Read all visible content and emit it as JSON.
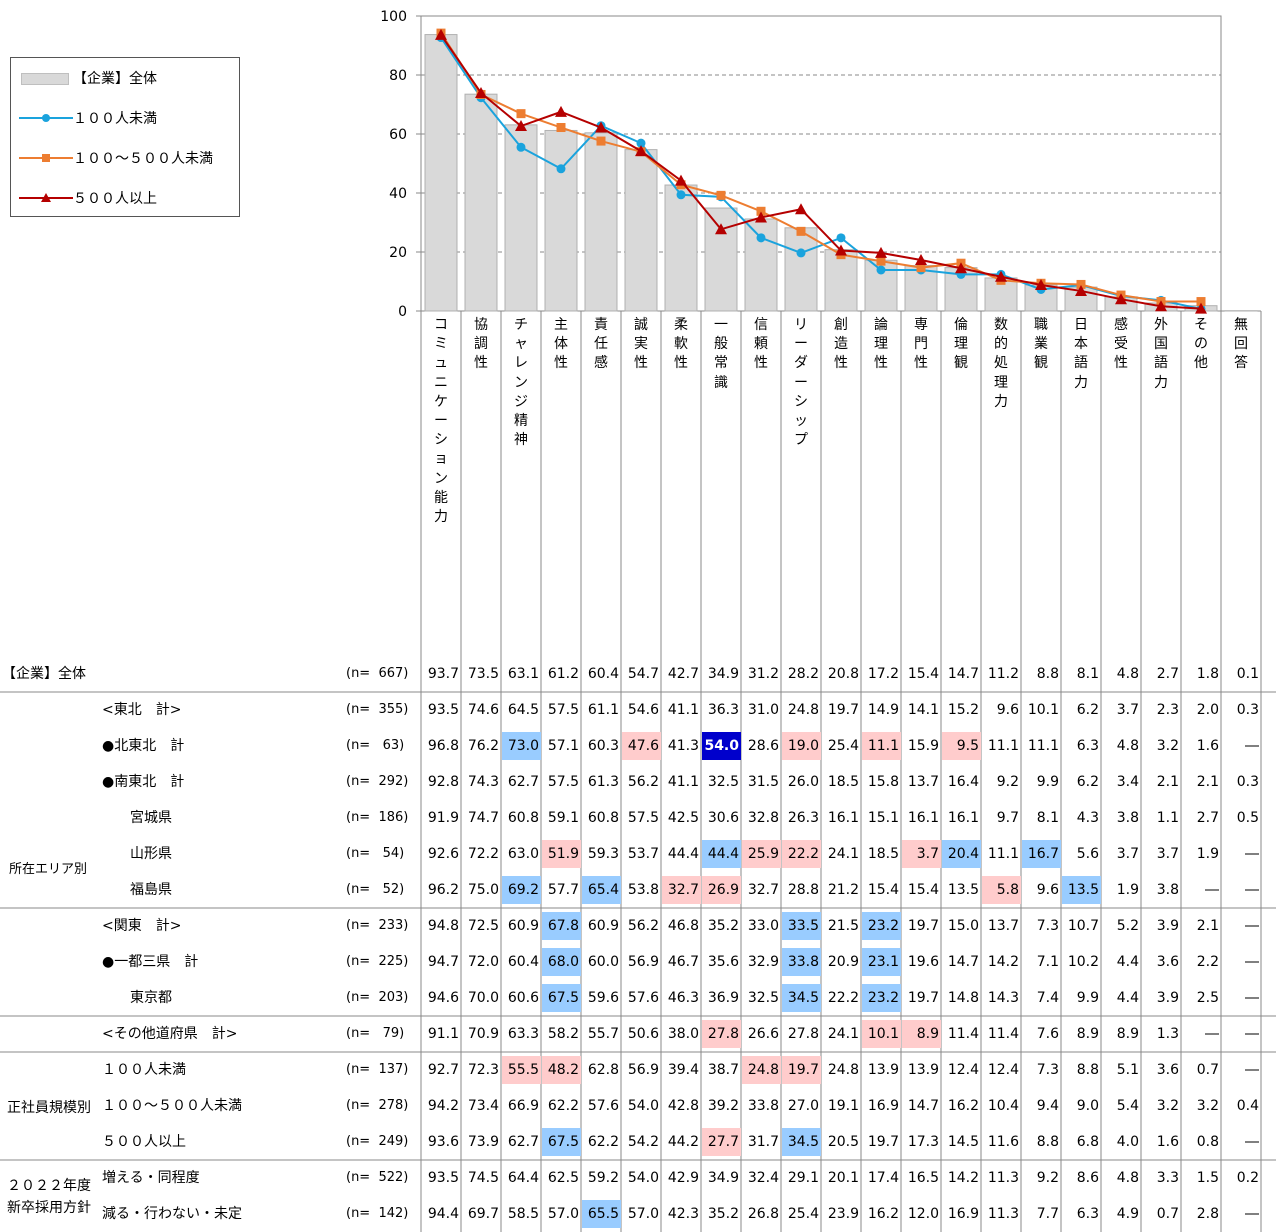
{
  "chart_data": {
    "type": "bar",
    "ylim": [
      0,
      100
    ],
    "yticks": [
      0,
      20,
      40,
      60,
      80,
      100
    ],
    "categories": [
      "コミュニケーション能力",
      "協調性",
      "チャレンジ精神",
      "主体性",
      "責任感",
      "誠実性",
      "柔軟性",
      "一般常識",
      "信頼性",
      "リーダーシップ",
      "創造性",
      "論理性",
      "専門性",
      "倫理観",
      "数的処理力",
      "職業観",
      "日本語力",
      "感受性",
      "外国語力",
      "その他",
      "無回答"
    ],
    "series": [
      {
        "name": "【企業】全体",
        "kind": "bar",
        "color": "#d9d9d9",
        "values": [
          93.7,
          73.5,
          63.1,
          61.2,
          60.4,
          54.7,
          42.7,
          34.9,
          31.2,
          28.2,
          20.8,
          17.2,
          15.4,
          14.7,
          11.2,
          8.8,
          8.1,
          4.8,
          2.7,
          1.8,
          0.1
        ]
      },
      {
        "name": "１００人未満",
        "kind": "line",
        "color": "#1aa3dd",
        "marker": "circle",
        "values": [
          92.7,
          72.3,
          55.5,
          48.2,
          62.8,
          56.9,
          39.4,
          38.7,
          24.8,
          19.7,
          24.8,
          13.9,
          13.9,
          12.4,
          12.4,
          7.3,
          8.8,
          5.1,
          3.6,
          0.7,
          null
        ]
      },
      {
        "name": "１００～５００人未満",
        "kind": "line",
        "color": "#ed7d31",
        "marker": "square",
        "values": [
          94.2,
          73.4,
          66.9,
          62.2,
          57.6,
          54.0,
          42.8,
          39.2,
          33.8,
          27.0,
          19.1,
          16.9,
          14.7,
          16.2,
          10.4,
          9.4,
          9.0,
          5.4,
          3.2,
          3.2,
          0.4
        ]
      },
      {
        "name": "５００人以上",
        "kind": "line",
        "color": "#b50000",
        "marker": "triangle",
        "values": [
          93.6,
          73.9,
          62.7,
          67.5,
          62.2,
          54.2,
          44.2,
          27.7,
          31.7,
          34.5,
          20.5,
          19.7,
          17.3,
          14.5,
          11.6,
          8.8,
          6.8,
          4.0,
          1.6,
          0.8,
          null
        ]
      }
    ]
  },
  "legend": {
    "items": [
      "【企業】全体",
      "１００人未満",
      "１００～５００人未満",
      "５００人以上"
    ]
  },
  "groups": {
    "area": "所在エリア別",
    "size": "正社員規模別",
    "plan_line1": "２０２２年度",
    "plan_line2": "新卒採用方針"
  },
  "table": {
    "rows": [
      {
        "label": "【企業】全体",
        "n": "(n=  667)",
        "indent": 0,
        "values": [
          "93.7",
          "73.5",
          "63.1",
          "61.2",
          "60.4",
          "54.7",
          "42.7",
          "34.9",
          "31.2",
          "28.2",
          "20.8",
          "17.2",
          "15.4",
          "14.7",
          "11.2",
          "8.8",
          "8.1",
          "4.8",
          "2.7",
          "1.8",
          "0.1"
        ]
      },
      {
        "label": "<東北　計>",
        "n": "(n=  355)",
        "indent": 1,
        "values": [
          "93.5",
          "74.6",
          "64.5",
          "57.5",
          "61.1",
          "54.6",
          "41.1",
          "36.3",
          "31.0",
          "24.8",
          "19.7",
          "14.9",
          "14.1",
          "15.2",
          "9.6",
          "10.1",
          "6.2",
          "3.7",
          "2.3",
          "2.0",
          "0.3"
        ]
      },
      {
        "label": "●北東北　計",
        "n": "(n=   63)",
        "indent": 1,
        "values": [
          "96.8",
          "76.2",
          "73.0",
          "57.1",
          "60.3",
          "47.6",
          "41.3",
          "54.0",
          "28.6",
          "19.0",
          "25.4",
          "11.1",
          "15.9",
          "9.5",
          "11.1",
          "11.1",
          "6.3",
          "4.8",
          "3.2",
          "1.6",
          "―"
        ],
        "hl": {
          "2": "blue",
          "5": "pink",
          "7": "dark",
          "9": "pink",
          "11": "pink",
          "13": "pink"
        }
      },
      {
        "label": "●南東北　計",
        "n": "(n=  292)",
        "indent": 1,
        "values": [
          "92.8",
          "74.3",
          "62.7",
          "57.5",
          "61.3",
          "56.2",
          "41.1",
          "32.5",
          "31.5",
          "26.0",
          "18.5",
          "15.8",
          "13.7",
          "16.4",
          "9.2",
          "9.9",
          "6.2",
          "3.4",
          "2.1",
          "2.1",
          "0.3"
        ]
      },
      {
        "label": "宮城県",
        "n": "(n=  186)",
        "indent": 2,
        "values": [
          "91.9",
          "74.7",
          "60.8",
          "59.1",
          "60.8",
          "57.5",
          "42.5",
          "30.6",
          "32.8",
          "26.3",
          "16.1",
          "15.1",
          "16.1",
          "16.1",
          "9.7",
          "8.1",
          "4.3",
          "3.8",
          "1.1",
          "2.7",
          "0.5"
        ]
      },
      {
        "label": "山形県",
        "n": "(n=   54)",
        "indent": 2,
        "values": [
          "92.6",
          "72.2",
          "63.0",
          "51.9",
          "59.3",
          "53.7",
          "44.4",
          "44.4",
          "25.9",
          "22.2",
          "24.1",
          "18.5",
          "3.7",
          "20.4",
          "11.1",
          "16.7",
          "5.6",
          "3.7",
          "3.7",
          "1.9",
          "―"
        ],
        "hl": {
          "3": "pink",
          "7": "blue",
          "8": "pink",
          "9": "pink",
          "12": "pink",
          "13": "blue",
          "15": "blue"
        }
      },
      {
        "label": "福島県",
        "n": "(n=   52)",
        "indent": 2,
        "values": [
          "96.2",
          "75.0",
          "69.2",
          "57.7",
          "65.4",
          "53.8",
          "32.7",
          "26.9",
          "32.7",
          "28.8",
          "21.2",
          "15.4",
          "15.4",
          "13.5",
          "5.8",
          "9.6",
          "13.5",
          "1.9",
          "3.8",
          "―",
          "―"
        ],
        "hl": {
          "2": "blue",
          "4": "blue",
          "6": "pink",
          "7": "pink",
          "14": "pink",
          "16": "blue"
        }
      },
      {
        "label": "<関東　計>",
        "n": "(n=  233)",
        "indent": 1,
        "values": [
          "94.8",
          "72.5",
          "60.9",
          "67.8",
          "60.9",
          "56.2",
          "46.8",
          "35.2",
          "33.0",
          "33.5",
          "21.5",
          "23.2",
          "19.7",
          "15.0",
          "13.7",
          "7.3",
          "10.7",
          "5.2",
          "3.9",
          "2.1",
          "―"
        ],
        "hl": {
          "3": "blue",
          "9": "blue",
          "11": "blue"
        }
      },
      {
        "label": "●一都三県　計",
        "n": "(n=  225)",
        "indent": 1,
        "values": [
          "94.7",
          "72.0",
          "60.4",
          "68.0",
          "60.0",
          "56.9",
          "46.7",
          "35.6",
          "32.9",
          "33.8",
          "20.9",
          "23.1",
          "19.6",
          "14.7",
          "14.2",
          "7.1",
          "10.2",
          "4.4",
          "3.6",
          "2.2",
          "―"
        ],
        "hl": {
          "3": "blue",
          "9": "blue",
          "11": "blue"
        }
      },
      {
        "label": "東京都",
        "n": "(n=  203)",
        "indent": 2,
        "values": [
          "94.6",
          "70.0",
          "60.6",
          "67.5",
          "59.6",
          "57.6",
          "46.3",
          "36.9",
          "32.5",
          "34.5",
          "22.2",
          "23.2",
          "19.7",
          "14.8",
          "14.3",
          "7.4",
          "9.9",
          "4.4",
          "3.9",
          "2.5",
          "―"
        ],
        "hl": {
          "3": "blue",
          "9": "blue",
          "11": "blue"
        }
      },
      {
        "label": "<その他道府県　計>",
        "n": "(n=   79)",
        "indent": 1,
        "values": [
          "91.1",
          "70.9",
          "63.3",
          "58.2",
          "55.7",
          "50.6",
          "38.0",
          "27.8",
          "26.6",
          "27.8",
          "24.1",
          "10.1",
          "8.9",
          "11.4",
          "11.4",
          "7.6",
          "8.9",
          "8.9",
          "1.3",
          "―",
          "―"
        ],
        "hl": {
          "7": "pink",
          "11": "pink",
          "12": "pink"
        }
      },
      {
        "label": "１００人未満",
        "n": "(n=  137)",
        "indent": 1,
        "values": [
          "92.7",
          "72.3",
          "55.5",
          "48.2",
          "62.8",
          "56.9",
          "39.4",
          "38.7",
          "24.8",
          "19.7",
          "24.8",
          "13.9",
          "13.9",
          "12.4",
          "12.4",
          "7.3",
          "8.8",
          "5.1",
          "3.6",
          "0.7",
          "―"
        ],
        "hl": {
          "2": "pink",
          "3": "pink",
          "8": "pink",
          "9": "pink"
        }
      },
      {
        "label": "１００～５００人未満",
        "n": "(n=  278)",
        "indent": 1,
        "values": [
          "94.2",
          "73.4",
          "66.9",
          "62.2",
          "57.6",
          "54.0",
          "42.8",
          "39.2",
          "33.8",
          "27.0",
          "19.1",
          "16.9",
          "14.7",
          "16.2",
          "10.4",
          "9.4",
          "9.0",
          "5.4",
          "3.2",
          "3.2",
          "0.4"
        ]
      },
      {
        "label": "５００人以上",
        "n": "(n=  249)",
        "indent": 1,
        "values": [
          "93.6",
          "73.9",
          "62.7",
          "67.5",
          "62.2",
          "54.2",
          "44.2",
          "27.7",
          "31.7",
          "34.5",
          "20.5",
          "19.7",
          "17.3",
          "14.5",
          "11.6",
          "8.8",
          "6.8",
          "4.0",
          "1.6",
          "0.8",
          "―"
        ],
        "hl": {
          "3": "blue",
          "7": "pink",
          "9": "blue"
        }
      },
      {
        "label": "増える・同程度",
        "n": "(n=  522)",
        "indent": 1,
        "values": [
          "93.5",
          "74.5",
          "64.4",
          "62.5",
          "59.2",
          "54.0",
          "42.9",
          "34.9",
          "32.4",
          "29.1",
          "20.1",
          "17.4",
          "16.5",
          "14.2",
          "11.3",
          "9.2",
          "8.6",
          "4.8",
          "3.3",
          "1.5",
          "0.2"
        ]
      },
      {
        "label": "減る・行わない・未定",
        "n": "(n=  142)",
        "indent": 1,
        "values": [
          "94.4",
          "69.7",
          "58.5",
          "57.0",
          "65.5",
          "57.0",
          "42.3",
          "35.2",
          "26.8",
          "25.4",
          "23.9",
          "16.2",
          "12.0",
          "16.9",
          "11.3",
          "7.7",
          "6.3",
          "4.9",
          "0.7",
          "2.8",
          "―"
        ],
        "hl": {
          "4": "blue"
        }
      }
    ]
  }
}
